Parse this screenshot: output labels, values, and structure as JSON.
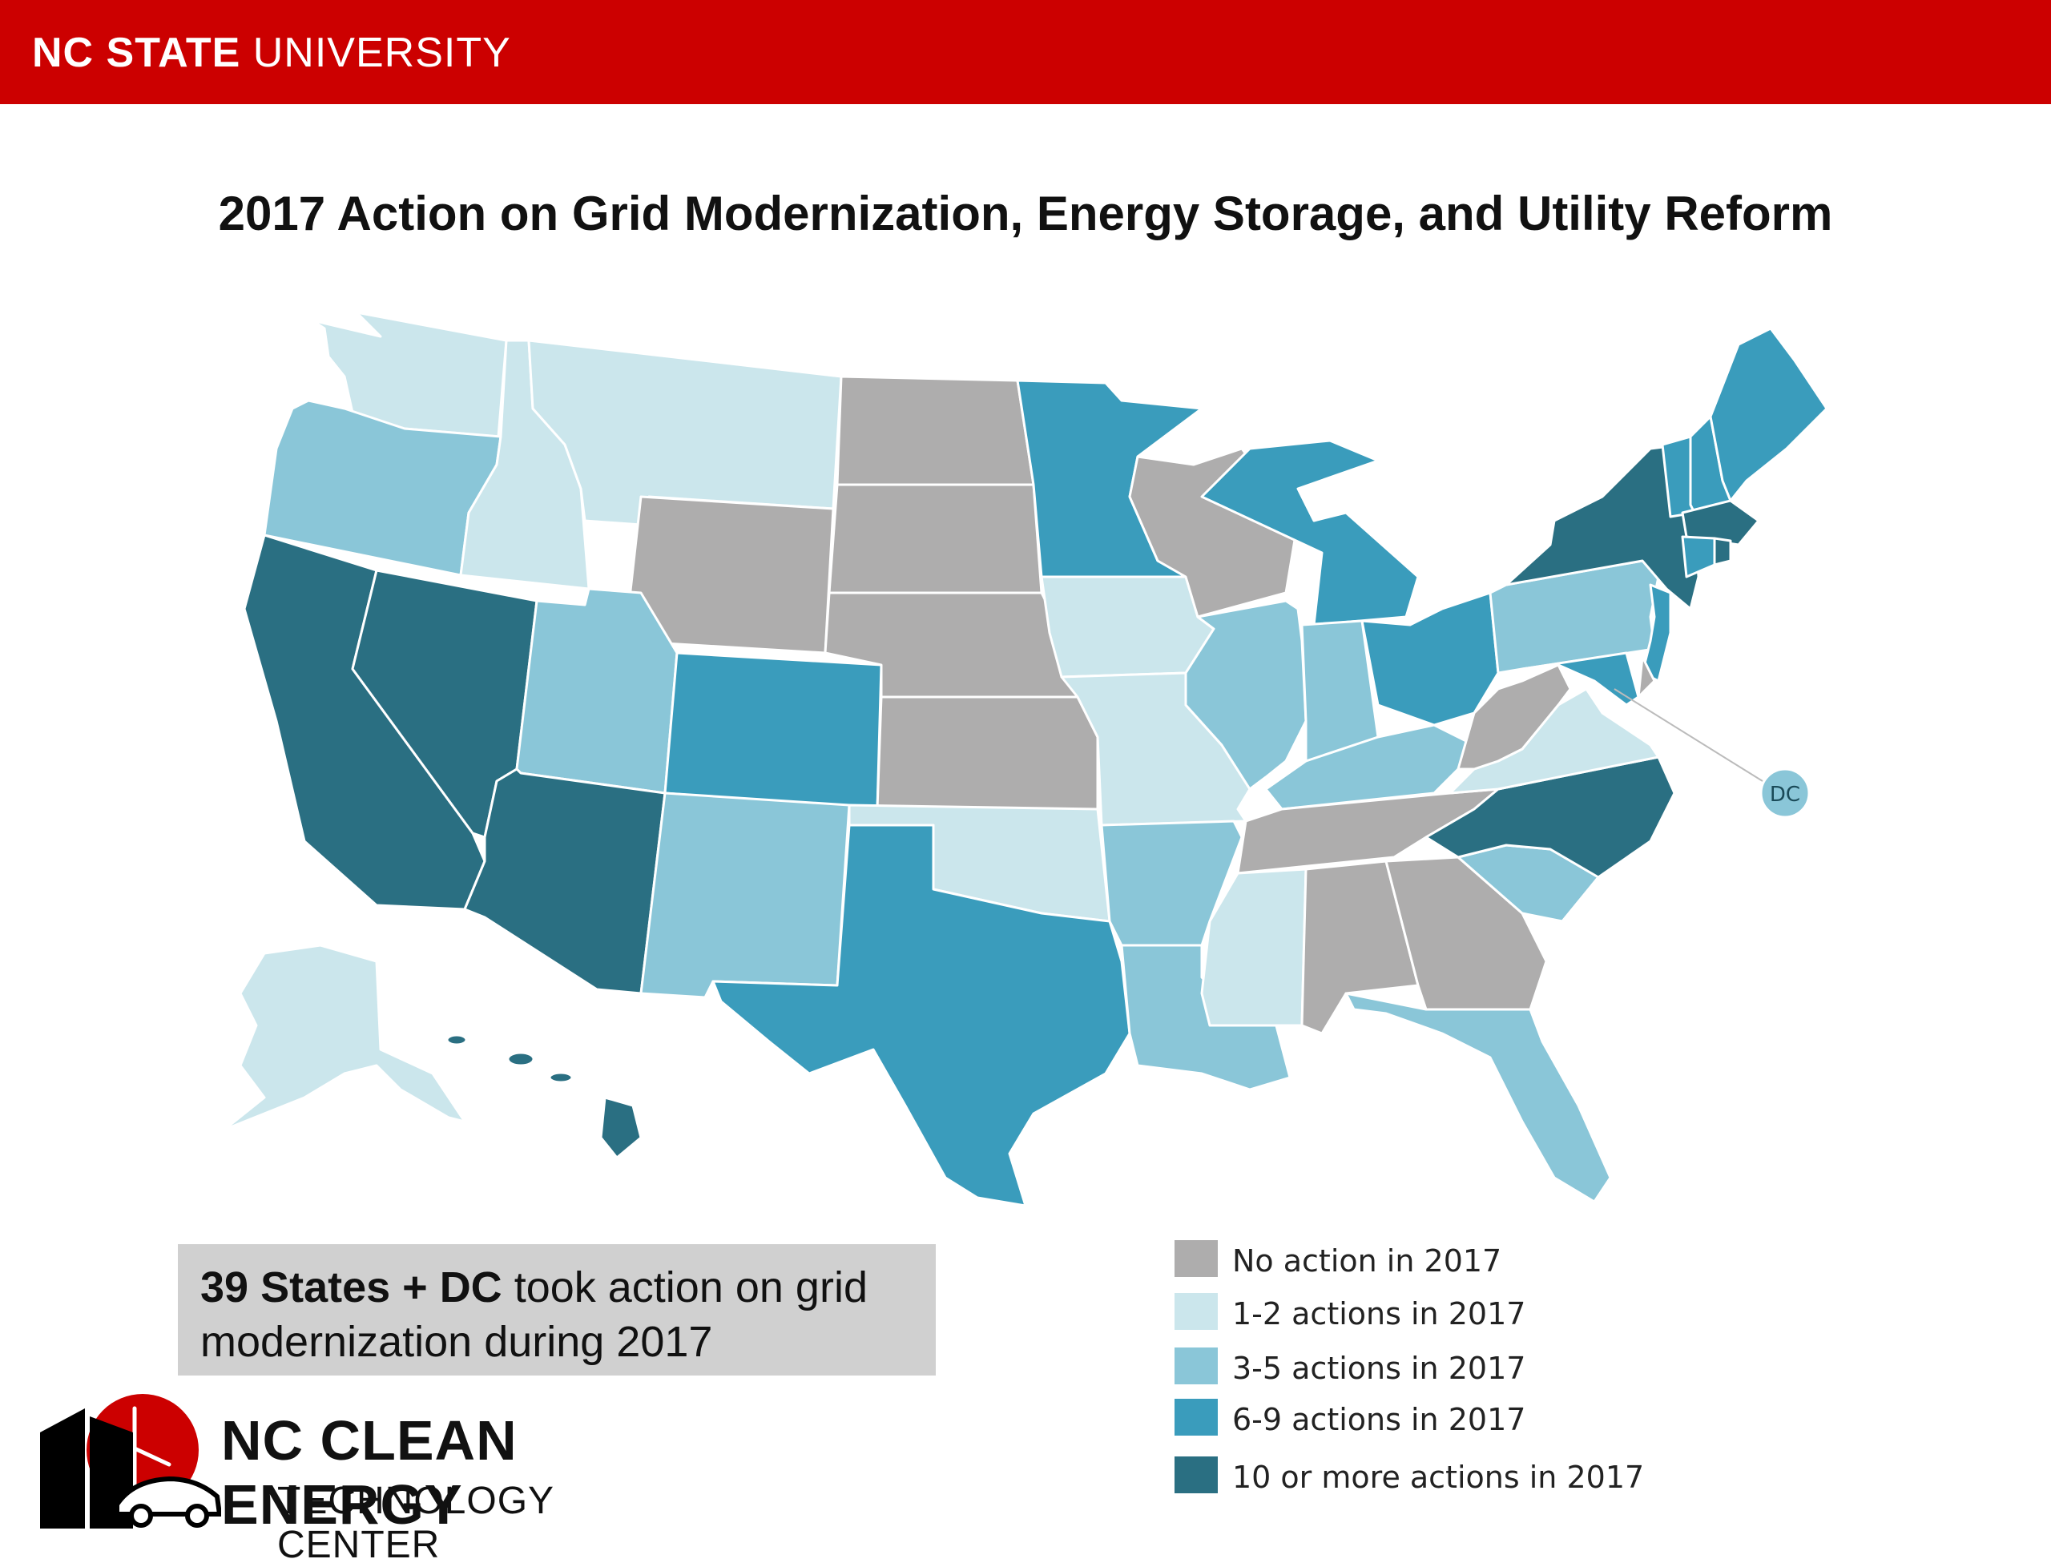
{
  "header": {
    "brand_bold": "NC STATE",
    "brand_regular": "UNIVERSITY",
    "bar_color": "#cc0000"
  },
  "title": "2017 Action on Grid Modernization, Energy Storage, and Utility Reform",
  "info_box": {
    "bold": "39 States + DC",
    "rest_line1": " took action on grid",
    "line2": "modernization during 2017"
  },
  "legend": [
    {
      "key": "none",
      "label": "No action in 2017",
      "color": "#aeadad"
    },
    {
      "key": "low",
      "label": "1-2 actions in 2017",
      "color": "#cbe6ec"
    },
    {
      "key": "mid",
      "label": "3-5 actions in 2017",
      "color": "#8ac6d8"
    },
    {
      "key": "high",
      "label": "6-9 actions in 2017",
      "color": "#3a9cbc"
    },
    {
      "key": "max",
      "label": "10 or more actions in 2017",
      "color": "#2a6f82"
    }
  ],
  "dc_label": "DC",
  "logo": {
    "title": "NC CLEAN ENERGY",
    "subtitle": "TECHNOLOGY CENTER"
  },
  "states": {
    "WA": "low",
    "OR": "mid",
    "CA": "max",
    "ID": "low",
    "NV": "max",
    "MT": "low",
    "WY": "none",
    "UT": "mid",
    "AZ": "max",
    "CO": "high",
    "NM": "mid",
    "ND": "none",
    "SD": "none",
    "NE": "none",
    "KS": "none",
    "OK": "low",
    "TX": "high",
    "MN": "high",
    "IA": "low",
    "MO": "low",
    "AR": "mid",
    "LA": "mid",
    "WI": "none",
    "IL": "mid",
    "MI": "high",
    "IN": "mid",
    "OH": "high",
    "KY": "mid",
    "TN": "none",
    "MS": "low",
    "AL": "none",
    "GA": "none",
    "FL": "mid",
    "SC": "mid",
    "NC": "max",
    "VA": "low",
    "WV": "none",
    "PA": "mid",
    "NY": "max",
    "VT": "high",
    "NH": "high",
    "ME": "high",
    "MA": "max",
    "RI": "max",
    "CT": "high",
    "NJ": "high",
    "DE": "none",
    "MD": "high",
    "DC": "mid",
    "AK": "low",
    "HI": "max"
  }
}
